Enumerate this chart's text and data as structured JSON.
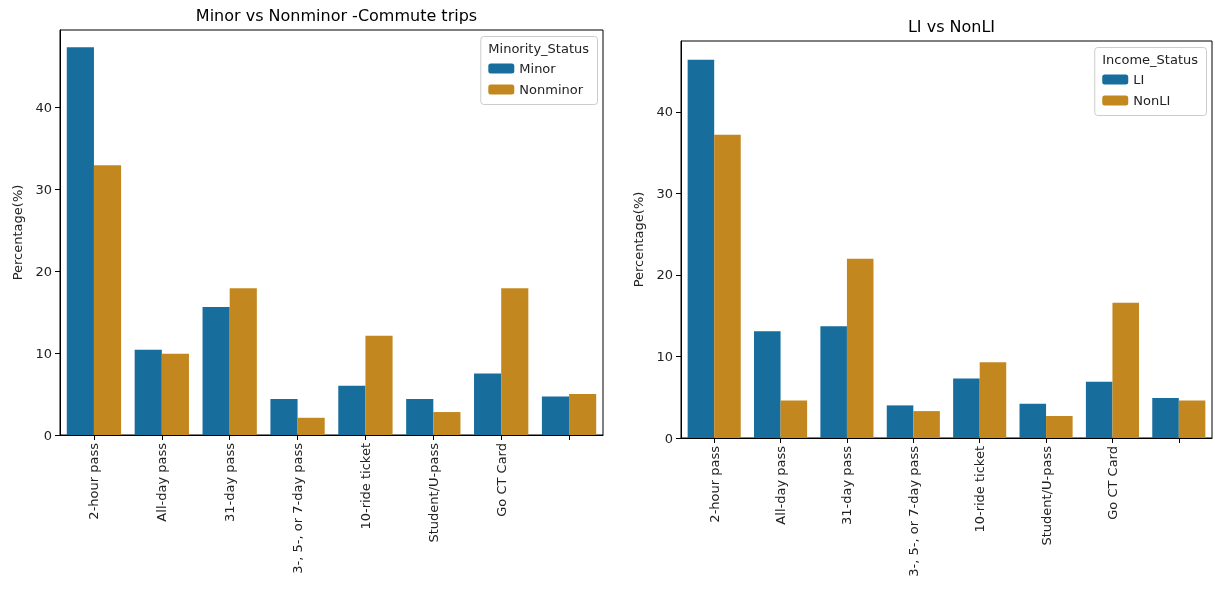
{
  "chart_data": [
    {
      "type": "bar",
      "title": "Minor vs Nonminor -Commute trips",
      "ylabel": "Percentage(%)",
      "legend_title": "Minority_Status",
      "legend": "top right",
      "grid": false,
      "categories": [
        "2-hour pass",
        "All-day pass",
        "31-day pass",
        "3-, 5-, or 7-day pass",
        "10-ride ticket",
        "Student/U-pass",
        "Go CT Card",
        null
      ],
      "ylim": [
        0,
        49.4
      ],
      "yticks": [
        0,
        10,
        20,
        30,
        40
      ],
      "series": [
        {
          "name": "Minor",
          "color": "#176d9c",
          "values": [
            47.3,
            10.4,
            15.6,
            4.4,
            6.0,
            4.4,
            7.5,
            4.7
          ]
        },
        {
          "name": "Nonminor",
          "color": "#c3871f",
          "values": [
            32.9,
            9.9,
            17.9,
            2.1,
            12.1,
            2.8,
            17.9,
            5.0
          ]
        }
      ]
    },
    {
      "type": "bar",
      "title": "LI vs NonLI",
      "ylabel": "Percentage(%)",
      "legend_title": "Income_Status",
      "legend": "top right",
      "grid": false,
      "categories": [
        "2-hour pass",
        "All-day pass",
        "31-day pass",
        "3-, 5-, or 7-day pass",
        "10-ride ticket",
        "Student/U-pass",
        "Go CT Card",
        null
      ],
      "ylim": [
        0,
        48.7
      ],
      "yticks": [
        0,
        10,
        20,
        30,
        40
      ],
      "series": [
        {
          "name": "LI",
          "color": "#176d9c",
          "values": [
            46.4,
            13.1,
            13.7,
            4.0,
            7.3,
            4.2,
            6.9,
            4.9
          ]
        },
        {
          "name": "NonLI",
          "color": "#c3871f",
          "values": [
            37.2,
            4.6,
            22.0,
            3.3,
            9.3,
            2.7,
            16.6,
            4.6
          ]
        }
      ]
    }
  ]
}
